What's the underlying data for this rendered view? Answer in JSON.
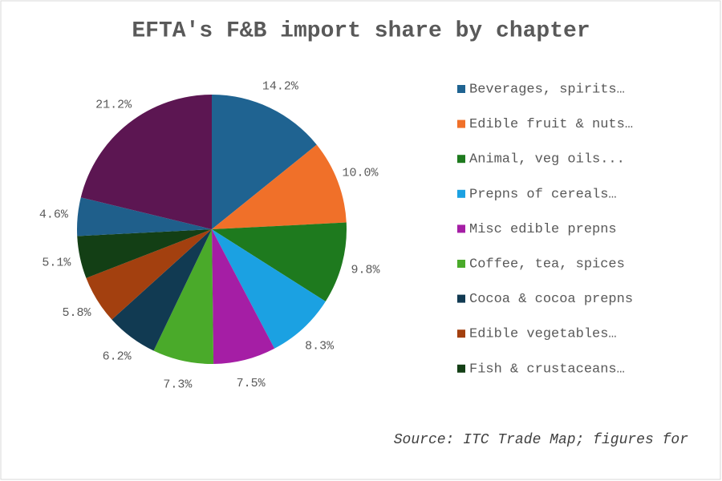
{
  "chart_data": {
    "type": "pie",
    "title": "EFTA's F&B import share by chapter",
    "categories": [
      "Beverages, spirits…",
      "Edible fruit & nuts…",
      "Animal, veg oils...",
      "Prepns of cereals…",
      "Misc edible prepns",
      "Coffee, tea, spices",
      "Cocoa & cocoa prepns",
      "Edible vegetables…",
      "Fish & crustaceans…",
      null,
      null
    ],
    "values": [
      14.2,
      10.0,
      9.8,
      8.3,
      7.5,
      7.3,
      6.2,
      5.8,
      5.1,
      4.6,
      21.2
    ],
    "value_labels": [
      "14.2%",
      "10.0%",
      "9.8%",
      "8.3%",
      "7.5%",
      "7.3%",
      "6.2%",
      "5.8%",
      "5.1%",
      "4.6%",
      "21.2%"
    ],
    "colors": [
      "#1f6391",
      "#f07029",
      "#1e7a1e",
      "#1ba1e2",
      "#a51ea5",
      "#4aaa2a",
      "#113a52",
      "#a3400f",
      "#133f15",
      "#1f5f8b",
      "#5c1652"
    ],
    "legend": "right",
    "source": "Source: ITC Trade Map; figures for"
  }
}
